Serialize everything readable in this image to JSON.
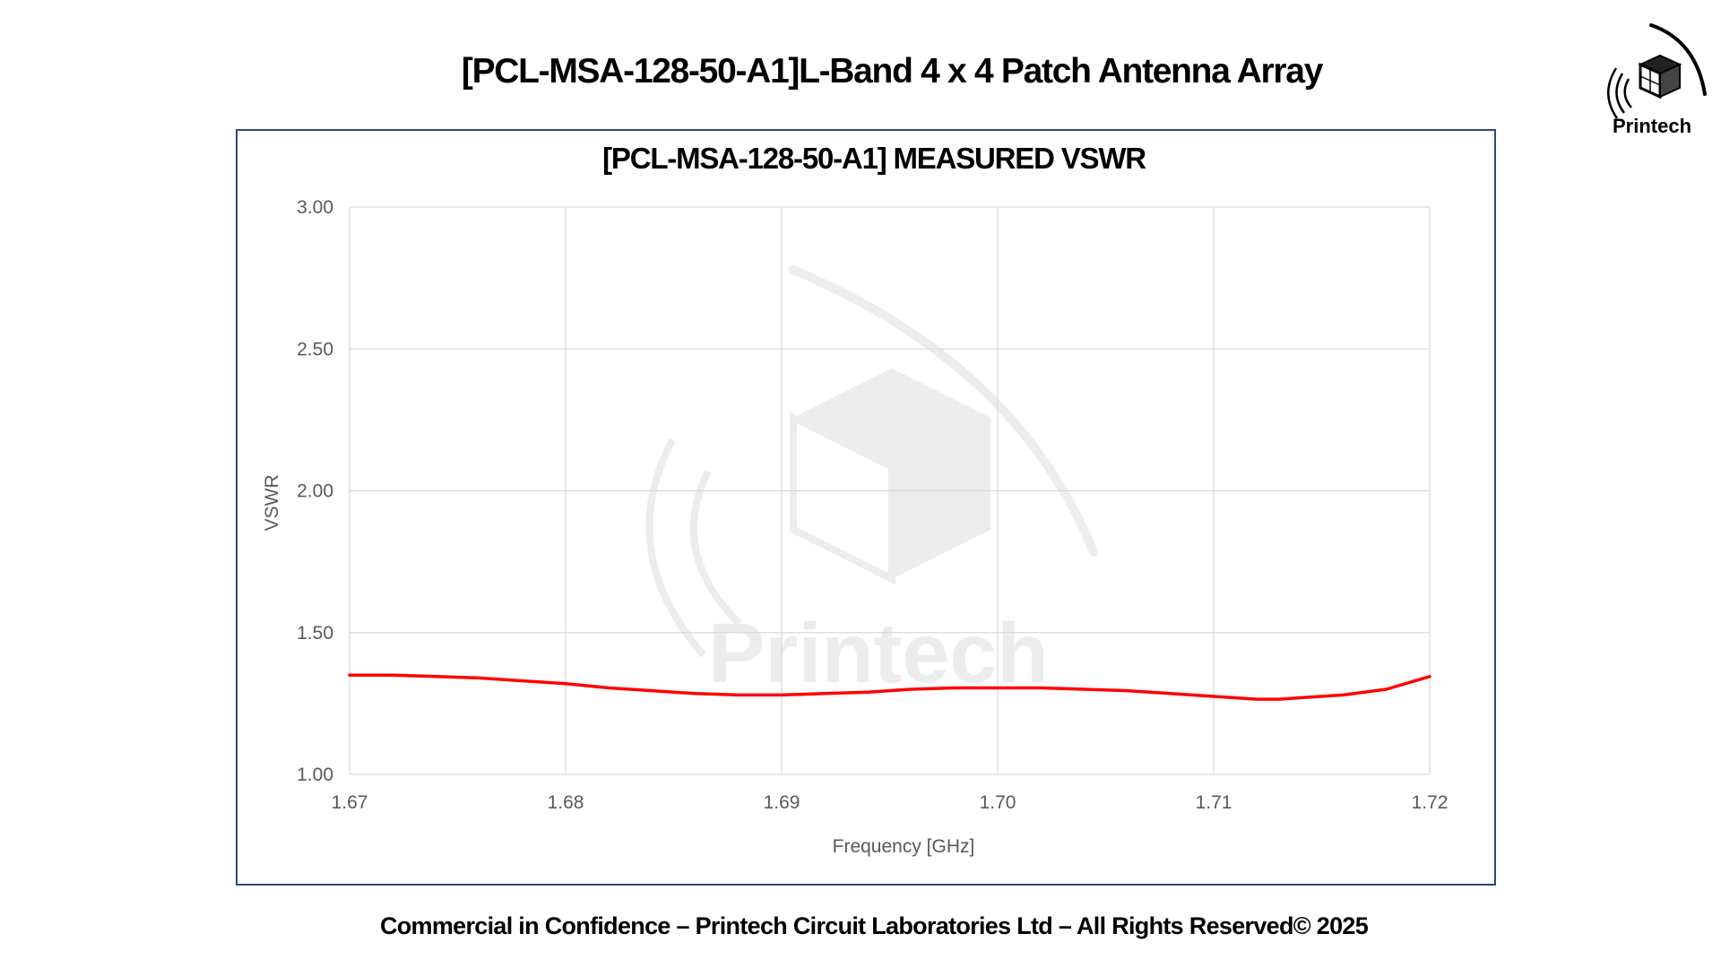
{
  "slide": {
    "title": "[PCL-MSA-128-50-A1]L-Band 4 x 4 Patch Antenna Array",
    "footer": "Commercial in Confidence – Printech Circuit Laboratories Ltd – All Rights Reserved© 2025",
    "logo_text": "Printech",
    "watermark_text": "Printech"
  },
  "colors": {
    "series": "#ff0000",
    "grid": "#d9d9d9",
    "frame": "#2e4a7a",
    "tick_text": "#595959"
  },
  "chart_data": {
    "type": "line",
    "title": "[PCL-MSA-128-50-A1]  MEASURED VSWR",
    "xlabel": "Frequency [GHz]",
    "ylabel": "VSWR",
    "xlim": [
      1.67,
      1.72
    ],
    "ylim": [
      1.0,
      3.0
    ],
    "x_ticks": [
      "1.67",
      "1.68",
      "1.69",
      "1.70",
      "1.71",
      "1.72"
    ],
    "y_ticks": [
      "1.00",
      "1.50",
      "2.00",
      "2.50",
      "3.00"
    ],
    "grid": true,
    "legend": "none",
    "series": [
      {
        "x": [
          1.67,
          1.672,
          1.674,
          1.676,
          1.678,
          1.68,
          1.682,
          1.684,
          1.686,
          1.688,
          1.69,
          1.692,
          1.694,
          1.696,
          1.698,
          1.7,
          1.702,
          1.704,
          1.706,
          1.708,
          1.71,
          1.711,
          1.712,
          1.713,
          1.714,
          1.716,
          1.718,
          1.72
        ],
        "y": [
          1.35,
          1.35,
          1.345,
          1.34,
          1.33,
          1.32,
          1.305,
          1.295,
          1.285,
          1.28,
          1.28,
          1.285,
          1.29,
          1.3,
          1.305,
          1.305,
          1.305,
          1.3,
          1.295,
          1.285,
          1.275,
          1.27,
          1.265,
          1.265,
          1.27,
          1.28,
          1.3,
          1.345
        ]
      }
    ]
  }
}
